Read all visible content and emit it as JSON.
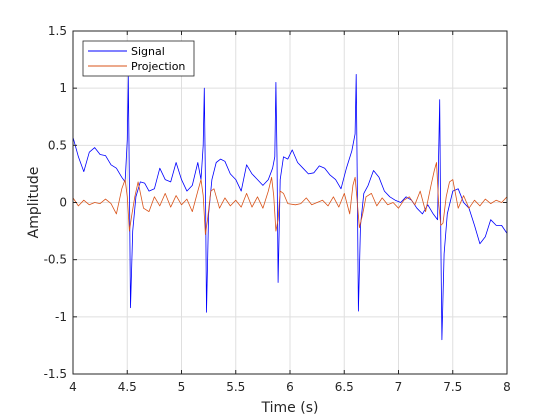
{
  "chart_data": {
    "type": "line",
    "xlabel": "Time (s)",
    "ylabel": "Amplitude",
    "xlim": [
      4,
      8
    ],
    "ylim": [
      -1.5,
      1.5
    ],
    "x_ticks": [
      4,
      4.5,
      5,
      5.5,
      6,
      6.5,
      7,
      7.5,
      8
    ],
    "y_ticks": [
      -1.5,
      -1,
      -0.5,
      0,
      0.5,
      1,
      1.5
    ],
    "x_tick_labels": [
      "4",
      "4.5",
      "5",
      "5.5",
      "6",
      "6.5",
      "7",
      "7.5",
      "8"
    ],
    "y_tick_labels": [
      "-1.5",
      "-1",
      "-0.5",
      "0",
      "0.5",
      "1",
      "1.5"
    ],
    "grid": true,
    "legend_position": "top-left",
    "series": [
      {
        "name": "Signal",
        "color": "#0000ff",
        "x": [
          4.0,
          4.05,
          4.1,
          4.15,
          4.2,
          4.25,
          4.3,
          4.35,
          4.4,
          4.45,
          4.48,
          4.5,
          4.51,
          4.52,
          4.53,
          4.55,
          4.58,
          4.62,
          4.66,
          4.7,
          4.75,
          4.8,
          4.85,
          4.9,
          4.95,
          5.0,
          5.05,
          5.1,
          5.15,
          5.18,
          5.2,
          5.21,
          5.22,
          5.23,
          5.25,
          5.28,
          5.32,
          5.36,
          5.4,
          5.45,
          5.5,
          5.55,
          5.6,
          5.65,
          5.7,
          5.75,
          5.8,
          5.84,
          5.86,
          5.87,
          5.88,
          5.89,
          5.91,
          5.94,
          5.98,
          6.02,
          6.07,
          6.12,
          6.17,
          6.22,
          6.27,
          6.32,
          6.37,
          6.42,
          6.47,
          6.52,
          6.57,
          6.6,
          6.61,
          6.62,
          6.63,
          6.65,
          6.68,
          6.72,
          6.77,
          6.82,
          6.87,
          6.92,
          6.97,
          7.02,
          7.07,
          7.12,
          7.17,
          7.22,
          7.27,
          7.32,
          7.36,
          7.37,
          7.38,
          7.39,
          7.4,
          7.42,
          7.45,
          7.5,
          7.55,
          7.6,
          7.65,
          7.7,
          7.75,
          7.8,
          7.85,
          7.9,
          7.95,
          8.0
        ],
        "y": [
          0.57,
          0.4,
          0.27,
          0.44,
          0.48,
          0.42,
          0.41,
          0.33,
          0.3,
          0.22,
          0.18,
          0.55,
          1.1,
          0.15,
          -0.92,
          -0.25,
          0.05,
          0.18,
          0.17,
          0.1,
          0.12,
          0.3,
          0.2,
          0.18,
          0.35,
          0.2,
          0.1,
          0.15,
          0.35,
          0.2,
          0.5,
          1.0,
          0.2,
          -0.96,
          -0.1,
          0.2,
          0.35,
          0.38,
          0.36,
          0.25,
          0.2,
          0.1,
          0.33,
          0.25,
          0.2,
          0.15,
          0.2,
          0.3,
          0.4,
          1.05,
          0.4,
          -0.7,
          0.2,
          0.4,
          0.38,
          0.46,
          0.35,
          0.3,
          0.25,
          0.26,
          0.32,
          0.3,
          0.24,
          0.2,
          0.12,
          0.3,
          0.45,
          0.6,
          1.12,
          0.15,
          -0.95,
          -0.2,
          0.08,
          0.15,
          0.28,
          0.22,
          0.1,
          0.05,
          0.02,
          0.0,
          0.05,
          0.02,
          -0.05,
          -0.1,
          -0.02,
          -0.1,
          -0.15,
          0.4,
          0.9,
          -0.3,
          -1.2,
          -0.45,
          -0.1,
          0.1,
          0.12,
          0.0,
          -0.05,
          -0.2,
          -0.36,
          -0.3,
          -0.15,
          -0.2,
          -0.2,
          -0.27
        ]
      },
      {
        "name": "Projection",
        "color": "#d95319",
        "x": [
          4.0,
          4.05,
          4.1,
          4.15,
          4.2,
          4.25,
          4.3,
          4.35,
          4.4,
          4.45,
          4.48,
          4.5,
          4.52,
          4.54,
          4.57,
          4.6,
          4.65,
          4.7,
          4.75,
          4.8,
          4.85,
          4.9,
          4.95,
          5.0,
          5.05,
          5.1,
          5.15,
          5.18,
          5.2,
          5.22,
          5.24,
          5.27,
          5.3,
          5.35,
          5.4,
          5.45,
          5.5,
          5.55,
          5.6,
          5.65,
          5.7,
          5.75,
          5.8,
          5.83,
          5.85,
          5.87,
          5.89,
          5.91,
          5.94,
          5.98,
          6.05,
          6.1,
          6.15,
          6.2,
          6.25,
          6.3,
          6.35,
          6.4,
          6.45,
          6.5,
          6.55,
          6.58,
          6.6,
          6.62,
          6.64,
          6.67,
          6.7,
          6.75,
          6.8,
          6.85,
          6.9,
          6.95,
          7.0,
          7.05,
          7.1,
          7.15,
          7.2,
          7.25,
          7.3,
          7.33,
          7.35,
          7.37,
          7.39,
          7.41,
          7.44,
          7.47,
          7.5,
          7.55,
          7.6,
          7.65,
          7.7,
          7.75,
          7.8,
          7.85,
          7.9,
          7.95,
          8.0
        ],
        "y": [
          0.04,
          -0.03,
          0.02,
          -0.02,
          0.0,
          -0.01,
          0.03,
          -0.01,
          -0.1,
          0.12,
          0.2,
          0.05,
          -0.25,
          -0.12,
          0.05,
          0.18,
          -0.05,
          -0.08,
          0.05,
          -0.03,
          0.08,
          -0.04,
          0.06,
          -0.02,
          0.03,
          -0.08,
          0.1,
          0.2,
          0.06,
          -0.28,
          -0.15,
          0.1,
          0.12,
          -0.05,
          0.04,
          -0.03,
          0.02,
          -0.04,
          0.08,
          -0.04,
          0.05,
          -0.05,
          0.1,
          0.22,
          0.06,
          -0.25,
          -0.15,
          0.1,
          0.08,
          -0.01,
          -0.02,
          -0.01,
          0.04,
          -0.02,
          0.0,
          0.02,
          -0.03,
          0.05,
          -0.04,
          0.08,
          -0.1,
          0.15,
          0.22,
          0.0,
          -0.22,
          -0.1,
          0.05,
          0.08,
          -0.03,
          0.04,
          -0.02,
          0.0,
          -0.05,
          0.02,
          0.05,
          -0.02,
          0.1,
          -0.08,
          0.15,
          0.28,
          0.35,
          0.0,
          -0.2,
          -0.18,
          0.05,
          0.18,
          0.2,
          -0.05,
          0.06,
          -0.05,
          0.02,
          -0.03,
          0.03,
          -0.01,
          0.02,
          0.0,
          0.05
        ]
      }
    ]
  }
}
